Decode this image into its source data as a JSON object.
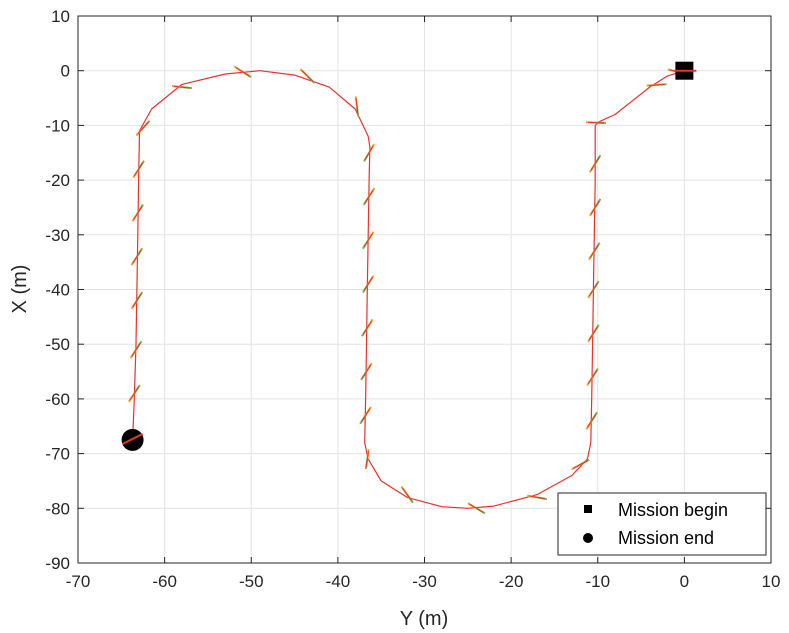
{
  "chart_data": {
    "type": "line",
    "xlabel": "Y (m)",
    "ylabel": "X (m)",
    "xlim": [
      -70,
      10
    ],
    "ylim": [
      -90,
      10
    ],
    "xticks": [
      -70,
      -60,
      -50,
      -40,
      -30,
      -20,
      -10,
      0,
      10
    ],
    "yticks": [
      -90,
      -80,
      -70,
      -60,
      -50,
      -40,
      -30,
      -20,
      -10,
      0,
      10
    ],
    "grid": true,
    "legend_position": "bottom-right",
    "legend": [
      {
        "label": "Mission begin",
        "marker": "square"
      },
      {
        "label": "Mission end",
        "marker": "circle"
      }
    ],
    "colors": {
      "path": "#e8322c",
      "heading_a": "#e8322c",
      "heading_b": "#7ab648",
      "heading_c": "#f0a030",
      "marker": "#000000"
    },
    "path": [
      [
        0,
        0
      ],
      [
        -2,
        -1
      ],
      [
        -4,
        -3
      ],
      [
        -6,
        -5.5
      ],
      [
        -8,
        -8
      ],
      [
        -9.8,
        -9.3
      ],
      [
        -10.3,
        -10
      ],
      [
        -10.3,
        -20
      ],
      [
        -10.4,
        -30
      ],
      [
        -10.5,
        -40
      ],
      [
        -10.6,
        -50
      ],
      [
        -10.7,
        -60
      ],
      [
        -10.8,
        -68
      ],
      [
        -11.2,
        -71
      ],
      [
        -13,
        -74
      ],
      [
        -17,
        -77.5
      ],
      [
        -22,
        -79.6
      ],
      [
        -25,
        -80
      ],
      [
        -28,
        -79.7
      ],
      [
        -32,
        -78
      ],
      [
        -35,
        -75
      ],
      [
        -36.5,
        -71
      ],
      [
        -36.9,
        -68
      ],
      [
        -36.8,
        -60
      ],
      [
        -36.7,
        -50
      ],
      [
        -36.6,
        -40
      ],
      [
        -36.5,
        -30
      ],
      [
        -36.4,
        -20
      ],
      [
        -36.3,
        -14
      ],
      [
        -36.5,
        -12
      ],
      [
        -38,
        -7
      ],
      [
        -41,
        -3
      ],
      [
        -45,
        -0.8
      ],
      [
        -49,
        0
      ],
      [
        -53,
        -0.6
      ],
      [
        -58,
        -2.5
      ],
      [
        -61.5,
        -7
      ],
      [
        -62.9,
        -11
      ],
      [
        -63,
        -20
      ],
      [
        -63.1,
        -30
      ],
      [
        -63.2,
        -40
      ],
      [
        -63.3,
        -50
      ],
      [
        -63.5,
        -60
      ],
      [
        -63.7,
        -67.5
      ]
    ],
    "heading_samples": [
      [
        -0.8,
        -0.2
      ],
      [
        -3.2,
        -2.6
      ],
      [
        -10.2,
        -9.5
      ],
      [
        -10.3,
        -17
      ],
      [
        -10.3,
        -25
      ],
      [
        -10.4,
        -33
      ],
      [
        -10.5,
        -40
      ],
      [
        -10.5,
        -48
      ],
      [
        -10.6,
        -56
      ],
      [
        -10.7,
        -64
      ],
      [
        -12,
        -72
      ],
      [
        -17,
        -78
      ],
      [
        -24,
        -80
      ],
      [
        -32,
        -77.5
      ],
      [
        -36.6,
        -71
      ],
      [
        -36.8,
        -63
      ],
      [
        -36.7,
        -55
      ],
      [
        -36.6,
        -47
      ],
      [
        -36.5,
        -39
      ],
      [
        -36.5,
        -31
      ],
      [
        -36.4,
        -23
      ],
      [
        -36.4,
        -15
      ],
      [
        -37.8,
        -6.5
      ],
      [
        -43.5,
        -1
      ],
      [
        -51,
        -0.2
      ],
      [
        -58,
        -3
      ],
      [
        -62.5,
        -10.5
      ],
      [
        -63,
        -18
      ],
      [
        -63.1,
        -26
      ],
      [
        -63.2,
        -34
      ],
      [
        -63.2,
        -42
      ],
      [
        -63.3,
        -51
      ],
      [
        -63.5,
        -59
      ],
      [
        -63.7,
        -67.5
      ]
    ],
    "mission_begin": [
      0,
      0
    ],
    "mission_end": [
      -63.7,
      -67.5
    ]
  }
}
